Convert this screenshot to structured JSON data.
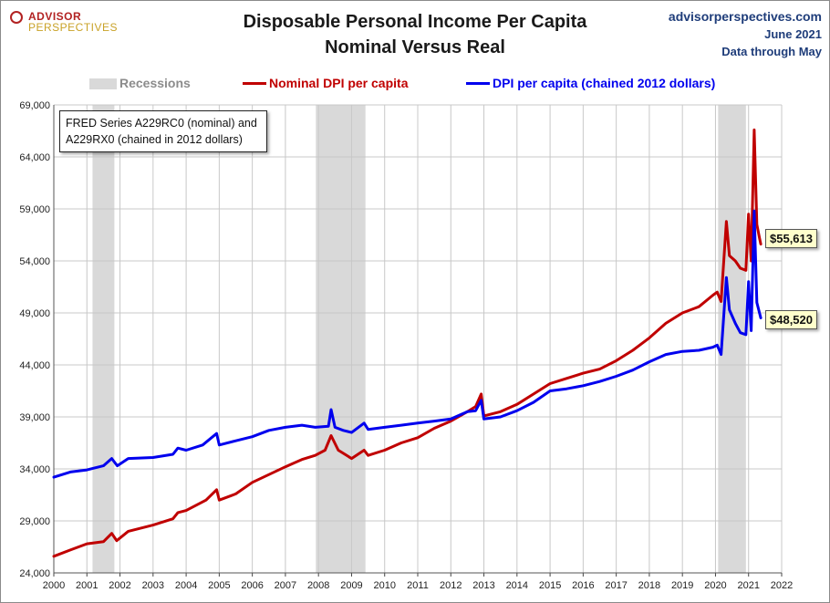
{
  "header": {
    "brand_line1": "ADVISOR",
    "brand_line2": "PERSPECTIVES",
    "title_line1": "Disposable Personal Income Per Capita",
    "title_line2": "Nominal Versus Real",
    "site": "advisorperspectives.com",
    "date": "June 2021",
    "data_through": "Data through May"
  },
  "legend": {
    "recessions": "Recessions",
    "nominal": "Nominal DPI per capita",
    "real": "DPI per capita (chained 2012 dollars)"
  },
  "note": {
    "line1": "FRED Series A229RC0 (nominal) and",
    "line2": "A229RX0 (chained in 2012 dollars)"
  },
  "callouts": {
    "nominal": "$55,613",
    "real": "$48,520"
  },
  "colors": {
    "nominal": "#c00000",
    "real": "#0000ee",
    "recession": "#d9d9d9",
    "grid": "#c8c8c8"
  },
  "chart_data": {
    "type": "line",
    "title": "Disposable Personal Income Per Capita Nominal Versus Real",
    "xlim": [
      2000,
      2022
    ],
    "ylim": [
      24000,
      69000
    ],
    "x_ticks": [
      2000,
      2001,
      2002,
      2003,
      2004,
      2005,
      2006,
      2007,
      2008,
      2009,
      2010,
      2011,
      2012,
      2013,
      2014,
      2015,
      2016,
      2017,
      2018,
      2019,
      2020,
      2021,
      2022
    ],
    "y_ticks": [
      24000,
      29000,
      34000,
      39000,
      44000,
      49000,
      54000,
      59000,
      64000,
      69000
    ],
    "y_tick_labels": [
      "24,000",
      "29,000",
      "34,000",
      "39,000",
      "44,000",
      "49,000",
      "54,000",
      "59,000",
      "64,000",
      "69,000"
    ],
    "grid": true,
    "legend_position": "top",
    "recessions": [
      [
        2001.17,
        2001.83
      ],
      [
        2007.92,
        2009.42
      ],
      [
        2020.08,
        2020.92
      ]
    ],
    "series": [
      {
        "name": "Nominal DPI per capita",
        "points": [
          [
            2000.0,
            25600
          ],
          [
            2000.5,
            26200
          ],
          [
            2001.0,
            26800
          ],
          [
            2001.5,
            27000
          ],
          [
            2001.75,
            27800
          ],
          [
            2001.9,
            27100
          ],
          [
            2002.25,
            28000
          ],
          [
            2003.0,
            28600
          ],
          [
            2003.6,
            29200
          ],
          [
            2003.75,
            29800
          ],
          [
            2004.0,
            30000
          ],
          [
            2004.6,
            31000
          ],
          [
            2004.92,
            32000
          ],
          [
            2005.0,
            31000
          ],
          [
            2005.5,
            31600
          ],
          [
            2006.0,
            32700
          ],
          [
            2007.0,
            34200
          ],
          [
            2007.5,
            34900
          ],
          [
            2007.9,
            35300
          ],
          [
            2008.2,
            35800
          ],
          [
            2008.38,
            37200
          ],
          [
            2008.6,
            35800
          ],
          [
            2009.0,
            35000
          ],
          [
            2009.38,
            35800
          ],
          [
            2009.5,
            35300
          ],
          [
            2010.0,
            35800
          ],
          [
            2010.5,
            36500
          ],
          [
            2011.0,
            37000
          ],
          [
            2011.5,
            37900
          ],
          [
            2012.0,
            38600
          ],
          [
            2012.5,
            39500
          ],
          [
            2012.75,
            40000
          ],
          [
            2012.92,
            41200
          ],
          [
            2013.0,
            39100
          ],
          [
            2013.5,
            39500
          ],
          [
            2014.0,
            40200
          ],
          [
            2014.5,
            41200
          ],
          [
            2015.0,
            42200
          ],
          [
            2015.5,
            42700
          ],
          [
            2016.0,
            43200
          ],
          [
            2016.5,
            43600
          ],
          [
            2017.0,
            44400
          ],
          [
            2017.5,
            45400
          ],
          [
            2018.0,
            46600
          ],
          [
            2018.5,
            48000
          ],
          [
            2019.0,
            49000
          ],
          [
            2019.5,
            49600
          ],
          [
            2019.92,
            50700
          ],
          [
            2020.05,
            51000
          ],
          [
            2020.17,
            50100
          ],
          [
            2020.33,
            57800
          ],
          [
            2020.42,
            54500
          ],
          [
            2020.6,
            54000
          ],
          [
            2020.75,
            53300
          ],
          [
            2020.92,
            53100
          ],
          [
            2021.0,
            58500
          ],
          [
            2021.08,
            54000
          ],
          [
            2021.17,
            66600
          ],
          [
            2021.25,
            57500
          ],
          [
            2021.33,
            56200
          ],
          [
            2021.37,
            55613
          ]
        ]
      },
      {
        "name": "DPI per capita (chained 2012 dollars)",
        "points": [
          [
            2000.0,
            33200
          ],
          [
            2000.5,
            33700
          ],
          [
            2001.0,
            33900
          ],
          [
            2001.5,
            34300
          ],
          [
            2001.75,
            35000
          ],
          [
            2001.92,
            34300
          ],
          [
            2002.25,
            35000
          ],
          [
            2003.0,
            35100
          ],
          [
            2003.6,
            35400
          ],
          [
            2003.75,
            36000
          ],
          [
            2004.0,
            35800
          ],
          [
            2004.5,
            36300
          ],
          [
            2004.92,
            37400
          ],
          [
            2005.0,
            36300
          ],
          [
            2005.5,
            36700
          ],
          [
            2006.0,
            37100
          ],
          [
            2006.5,
            37700
          ],
          [
            2007.0,
            38000
          ],
          [
            2007.5,
            38200
          ],
          [
            2007.9,
            38000
          ],
          [
            2008.3,
            38100
          ],
          [
            2008.38,
            39700
          ],
          [
            2008.5,
            38000
          ],
          [
            2008.75,
            37700
          ],
          [
            2009.0,
            37500
          ],
          [
            2009.38,
            38400
          ],
          [
            2009.5,
            37800
          ],
          [
            2010.0,
            38000
          ],
          [
            2010.5,
            38200
          ],
          [
            2011.0,
            38400
          ],
          [
            2011.5,
            38600
          ],
          [
            2012.0,
            38800
          ],
          [
            2012.5,
            39500
          ],
          [
            2012.75,
            39600
          ],
          [
            2012.92,
            40600
          ],
          [
            2013.0,
            38800
          ],
          [
            2013.5,
            39000
          ],
          [
            2014.0,
            39600
          ],
          [
            2014.5,
            40400
          ],
          [
            2015.0,
            41500
          ],
          [
            2015.5,
            41700
          ],
          [
            2016.0,
            42000
          ],
          [
            2016.5,
            42400
          ],
          [
            2017.0,
            42900
          ],
          [
            2017.5,
            43500
          ],
          [
            2018.0,
            44300
          ],
          [
            2018.5,
            45000
          ],
          [
            2019.0,
            45300
          ],
          [
            2019.5,
            45400
          ],
          [
            2019.92,
            45700
          ],
          [
            2020.05,
            45900
          ],
          [
            2020.17,
            45000
          ],
          [
            2020.33,
            52400
          ],
          [
            2020.42,
            49300
          ],
          [
            2020.6,
            48000
          ],
          [
            2020.75,
            47100
          ],
          [
            2020.92,
            46900
          ],
          [
            2021.0,
            52000
          ],
          [
            2021.08,
            47300
          ],
          [
            2021.17,
            58800
          ],
          [
            2021.25,
            50000
          ],
          [
            2021.33,
            49000
          ],
          [
            2021.37,
            48520
          ]
        ]
      }
    ]
  }
}
